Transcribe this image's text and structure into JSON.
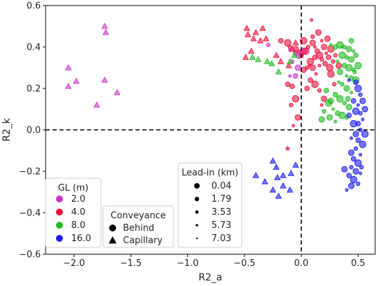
{
  "chart_data": {
    "type": "scatter",
    "xlabel": "R2_a",
    "ylabel": "R2_k",
    "xlim": [
      -2.25,
      0.65
    ],
    "ylim": [
      -0.6,
      0.6
    ],
    "xticks": [
      "−2.0",
      "−1.5",
      "−1.0",
      "−0.5",
      "0.0",
      "0.5"
    ],
    "xtick_values": [
      -2.0,
      -1.5,
      -1.0,
      -0.5,
      0.0,
      0.5
    ],
    "yticks": [
      "−0.6",
      "−0.4",
      "−0.2",
      "0.0",
      "0.2",
      "0.4",
      "0.6"
    ],
    "ytick_values": [
      -0.6,
      -0.4,
      -0.2,
      0.0,
      0.2,
      0.4,
      0.6
    ],
    "reference_lines": {
      "x": 0,
      "y": 0,
      "style": "dashed"
    },
    "grid": false,
    "legends": {
      "gl": {
        "title": "GL (m)",
        "placement": "bottom-left",
        "entries": [
          {
            "label": "2.0",
            "color": "#cc33cc"
          },
          {
            "label": "4.0",
            "color": "#e8123c"
          },
          {
            "label": "8.0",
            "color": "#22bb22"
          },
          {
            "label": "16.0",
            "color": "#1a1aee"
          }
        ]
      },
      "conveyance": {
        "title": "Conveyance",
        "placement": "bottom-center",
        "entries": [
          {
            "label": "Behind",
            "marker": "circle"
          },
          {
            "label": "Capillary",
            "marker": "triangle"
          }
        ]
      },
      "leadin": {
        "title": "Lead-in (km)",
        "placement": "bottom-center-right",
        "entries": [
          {
            "label": "0.04",
            "size": 0.04
          },
          {
            "label": "1.79",
            "size": 1.79
          },
          {
            "label": "3.53",
            "size": 3.53
          },
          {
            "label": "5.73",
            "size": 5.73
          },
          {
            "label": "7.03",
            "size": 7.03
          }
        ]
      }
    },
    "series": [
      {
        "gl": "2.0",
        "color": "#cc33cc",
        "marker": "triangle",
        "points": [
          [
            -2.05,
            0.3
          ],
          [
            -2.05,
            0.21
          ],
          [
            -1.98,
            0.235
          ],
          [
            -1.73,
            0.5
          ],
          [
            -1.72,
            0.47
          ],
          [
            -1.73,
            0.24
          ],
          [
            -1.62,
            0.18
          ],
          [
            -1.8,
            0.12
          ]
        ]
      },
      {
        "gl": "2.0",
        "color": "#cc33cc",
        "marker": "circle",
        "points": [
          [
            -0.1,
            0.385
          ],
          [
            -0.05,
            0.37
          ],
          [
            -0.02,
            0.36
          ],
          [
            -0.08,
            0.33
          ],
          [
            -0.03,
            0.3
          ],
          [
            -0.1,
            0.26
          ],
          [
            -0.05,
            0.26
          ],
          [
            0.02,
            0.38
          ],
          [
            -0.29,
            0.41
          ]
        ]
      },
      {
        "gl": "4.0",
        "color": "#e8123c",
        "marker": "triangle",
        "points": [
          [
            -0.48,
            0.49
          ],
          [
            -0.47,
            0.46
          ],
          [
            -0.4,
            0.47
          ],
          [
            -0.34,
            0.49
          ],
          [
            -0.42,
            0.44
          ],
          [
            -0.49,
            0.35
          ],
          [
            -0.44,
            0.38
          ],
          [
            -0.36,
            0.43
          ],
          [
            -0.31,
            0.44
          ],
          [
            -0.08,
            0.39
          ],
          [
            -0.05,
            0.42
          ],
          [
            -0.18,
            0.33
          ],
          [
            -0.22,
            0.36
          ],
          [
            -0.11,
            0.31
          ]
        ]
      },
      {
        "gl": "4.0",
        "color": "#e8123c",
        "marker": "circle",
        "points": [
          [
            0.09,
            0.53
          ],
          [
            -0.18,
            0.43
          ],
          [
            -0.12,
            0.42
          ],
          [
            -0.1,
            0.4
          ],
          [
            -0.05,
            0.39
          ],
          [
            -0.02,
            0.38
          ],
          [
            0.0,
            0.36
          ],
          [
            0.04,
            0.38
          ],
          [
            0.06,
            0.4
          ],
          [
            0.1,
            0.42
          ],
          [
            0.12,
            0.4
          ],
          [
            0.14,
            0.38
          ],
          [
            0.16,
            0.36
          ],
          [
            0.18,
            0.34
          ],
          [
            0.2,
            0.4
          ],
          [
            0.22,
            0.37
          ],
          [
            0.24,
            0.35
          ],
          [
            0.26,
            0.39
          ],
          [
            0.28,
            0.33
          ],
          [
            0.23,
            0.44
          ],
          [
            0.18,
            0.43
          ],
          [
            0.12,
            0.35
          ],
          [
            0.08,
            0.33
          ],
          [
            0.05,
            0.3
          ],
          [
            0.1,
            0.3
          ],
          [
            0.16,
            0.31
          ],
          [
            0.21,
            0.32
          ],
          [
            0.25,
            0.3
          ],
          [
            0.3,
            0.36
          ],
          [
            0.33,
            0.31
          ],
          [
            0.13,
            0.27
          ],
          [
            0.08,
            0.24
          ],
          [
            0.12,
            0.22
          ],
          [
            0.16,
            0.19
          ],
          [
            0.2,
            0.15
          ],
          [
            0.18,
            0.12
          ],
          [
            -0.08,
            0.21
          ],
          [
            -0.05,
            0.15
          ],
          [
            -0.09,
            0.12
          ],
          [
            -0.03,
            0.06
          ],
          [
            -0.07,
            0.02
          ],
          [
            -0.12,
            0.22
          ],
          [
            0.26,
            0.27
          ],
          [
            0.29,
            0.22
          ],
          [
            0.02,
            0.29
          ],
          [
            0.07,
            0.31
          ],
          [
            0.05,
            0.2
          ],
          [
            0.02,
            0.43
          ],
          [
            0.1,
            0.45
          ],
          [
            0.15,
            0.47
          ]
        ]
      },
      {
        "gl": "4.0",
        "color": "#e8123c",
        "marker": "star",
        "points": [
          [
            -0.12,
            -0.09
          ]
        ]
      },
      {
        "gl": "8.0",
        "color": "#22bb22",
        "marker": "triangle",
        "points": [
          [
            -0.43,
            0.35
          ],
          [
            -0.38,
            0.34
          ],
          [
            -0.3,
            0.33
          ],
          [
            -0.26,
            0.32
          ],
          [
            -0.2,
            0.28
          ],
          [
            -0.1,
            0.33
          ],
          [
            -0.06,
            0.36
          ]
        ]
      },
      {
        "gl": "8.0",
        "color": "#22bb22",
        "marker": "circle",
        "points": [
          [
            0.26,
            0.41
          ],
          [
            0.3,
            0.4
          ],
          [
            0.34,
            0.41
          ],
          [
            0.38,
            0.4
          ],
          [
            0.42,
            0.39
          ],
          [
            0.46,
            0.38
          ],
          [
            0.48,
            0.36
          ],
          [
            0.36,
            0.36
          ],
          [
            0.4,
            0.35
          ],
          [
            0.44,
            0.34
          ],
          [
            0.32,
            0.33
          ],
          [
            0.38,
            0.31
          ],
          [
            0.42,
            0.3
          ],
          [
            0.46,
            0.29
          ],
          [
            0.34,
            0.28
          ],
          [
            0.4,
            0.26
          ],
          [
            0.44,
            0.25
          ],
          [
            0.48,
            0.24
          ],
          [
            0.36,
            0.22
          ],
          [
            0.4,
            0.2
          ],
          [
            0.44,
            0.18
          ],
          [
            0.3,
            0.17
          ],
          [
            0.34,
            0.15
          ],
          [
            0.38,
            0.13
          ],
          [
            0.42,
            0.11
          ],
          [
            0.28,
            0.1
          ],
          [
            0.32,
            0.08
          ],
          [
            0.36,
            0.07
          ],
          [
            0.4,
            0.06
          ],
          [
            0.25,
            0.06
          ],
          [
            0.3,
            0.04
          ],
          [
            0.22,
            0.19
          ],
          [
            0.24,
            0.13
          ],
          [
            0.2,
            0.09
          ],
          [
            0.18,
            0.05
          ],
          [
            0.36,
            0.4
          ],
          [
            0.44,
            0.43
          ],
          [
            0.5,
            0.31
          ],
          [
            0.47,
            0.28
          ],
          [
            0.26,
            0.14
          ],
          [
            0.33,
            0.23
          ],
          [
            0.41,
            0.15
          ]
        ]
      },
      {
        "gl": "16.0",
        "color": "#1a1aee",
        "marker": "triangle",
        "points": [
          [
            -0.25,
            -0.15
          ],
          [
            -0.22,
            -0.18
          ],
          [
            -0.21,
            -0.23
          ],
          [
            -0.16,
            -0.27
          ],
          [
            -0.25,
            -0.29
          ],
          [
            -0.2,
            -0.32
          ],
          [
            -0.32,
            -0.25
          ],
          [
            -0.4,
            -0.22
          ],
          [
            -0.16,
            -0.22
          ],
          [
            -0.1,
            -0.29
          ],
          [
            -0.09,
            -0.21
          ],
          [
            -0.05,
            -0.17
          ]
        ]
      },
      {
        "gl": "16.0",
        "color": "#1a1aee",
        "marker": "circle",
        "points": [
          [
            0.42,
            0.24
          ],
          [
            0.48,
            0.23
          ],
          [
            0.5,
            0.2
          ],
          [
            0.52,
            0.17
          ],
          [
            0.54,
            0.14
          ],
          [
            0.5,
            0.12
          ],
          [
            0.46,
            0.14
          ],
          [
            0.48,
            0.09
          ],
          [
            0.52,
            0.08
          ],
          [
            0.56,
            0.1
          ],
          [
            0.54,
            0.05
          ],
          [
            0.5,
            0.03
          ],
          [
            0.46,
            0.03
          ],
          [
            0.52,
            0.0
          ],
          [
            0.48,
            -0.02
          ],
          [
            0.44,
            -0.04
          ],
          [
            0.5,
            -0.05
          ],
          [
            0.54,
            -0.07
          ],
          [
            0.48,
            -0.09
          ],
          [
            0.44,
            -0.11
          ],
          [
            0.52,
            -0.12
          ],
          [
            0.46,
            -0.14
          ],
          [
            0.5,
            -0.16
          ],
          [
            0.44,
            -0.18
          ],
          [
            0.48,
            -0.2
          ],
          [
            0.52,
            -0.21
          ],
          [
            0.42,
            -0.22
          ],
          [
            0.46,
            -0.24
          ],
          [
            0.5,
            -0.26
          ],
          [
            0.44,
            -0.27
          ],
          [
            0.4,
            -0.29
          ],
          [
            0.42,
            0.07
          ],
          [
            0.56,
            -0.02
          ],
          [
            0.53,
            -0.18
          ],
          [
            0.38,
            -0.19
          ]
        ]
      }
    ]
  }
}
